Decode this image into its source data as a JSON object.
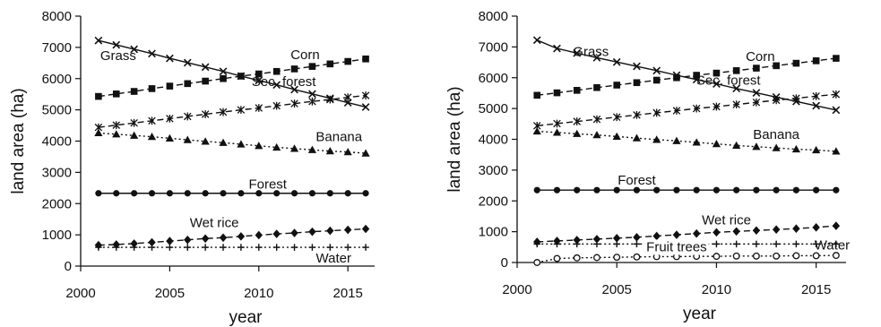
{
  "chart_data": [
    {
      "type": "line",
      "xlabel": "year",
      "ylabel": "land area (ha)",
      "xlim": [
        2000,
        2016.5
      ],
      "ylim": [
        0,
        8000
      ],
      "xticks": [
        2000,
        2005,
        2010,
        2015
      ],
      "yticks": [
        0,
        1000,
        2000,
        3000,
        4000,
        5000,
        6000,
        7000,
        8000
      ],
      "grid": false,
      "legend": "none (series labelled directly on lines)",
      "x": [
        2001,
        2002,
        2003,
        2004,
        2005,
        2006,
        2007,
        2008,
        2009,
        2010,
        2011,
        2012,
        2013,
        2014,
        2015,
        2016
      ],
      "series": [
        {
          "name": "Grass",
          "marker": "cross",
          "dash": "solid",
          "values": [
            7220,
            7080,
            6940,
            6800,
            6650,
            6510,
            6370,
            6230,
            6080,
            5940,
            5800,
            5650,
            5510,
            5370,
            5230,
            5090
          ]
        },
        {
          "name": "Corn",
          "marker": "square",
          "dash": "dashed",
          "values": [
            5430,
            5510,
            5590,
            5680,
            5760,
            5840,
            5920,
            6000,
            6080,
            6150,
            6230,
            6310,
            6390,
            6470,
            6550,
            6630
          ]
        },
        {
          "name": "Sec. forest",
          "marker": "star",
          "dash": "dashed",
          "values": [
            4440,
            4510,
            4580,
            4650,
            4720,
            4790,
            4860,
            4930,
            5000,
            5060,
            5130,
            5200,
            5270,
            5330,
            5400,
            5460
          ]
        },
        {
          "name": "Banana",
          "marker": "triangle",
          "dash": "dotted",
          "values": [
            4260,
            4220,
            4180,
            4140,
            4090,
            4040,
            3990,
            3950,
            3900,
            3850,
            3800,
            3760,
            3720,
            3680,
            3650,
            3610
          ]
        },
        {
          "name": "Forest",
          "marker": "circle",
          "dash": "solid",
          "values": [
            2330,
            2330,
            2330,
            2330,
            2330,
            2330,
            2330,
            2330,
            2330,
            2330,
            2330,
            2330,
            2330,
            2330,
            2330,
            2330
          ]
        },
        {
          "name": "Wet rice",
          "marker": "diamond",
          "dash": "dashed",
          "values": [
            670,
            690,
            720,
            760,
            800,
            840,
            880,
            910,
            950,
            990,
            1030,
            1060,
            1100,
            1130,
            1160,
            1190
          ]
        },
        {
          "name": "Water",
          "marker": "plus",
          "dash": "dotted",
          "values": [
            600,
            600,
            600,
            600,
            600,
            600,
            600,
            600,
            600,
            600,
            600,
            600,
            600,
            600,
            600,
            600
          ]
        }
      ]
    },
    {
      "type": "line",
      "xlabel": "year",
      "ylabel": "land area (ha)",
      "xlim": [
        2000,
        2016.5
      ],
      "ylim": [
        0,
        8000
      ],
      "xticks": [
        2000,
        2005,
        2010,
        2015
      ],
      "yticks": [
        0,
        1000,
        2000,
        3000,
        4000,
        5000,
        6000,
        7000,
        8000
      ],
      "grid": false,
      "legend": "none (series labelled directly on lines)",
      "x": [
        2001,
        2002,
        2003,
        2004,
        2005,
        2006,
        2007,
        2008,
        2009,
        2010,
        2011,
        2012,
        2013,
        2014,
        2015,
        2016
      ],
      "series": [
        {
          "name": "Grass",
          "marker": "cross",
          "dash": "solid",
          "values": [
            7220,
            6950,
            6800,
            6650,
            6510,
            6370,
            6230,
            6080,
            5940,
            5800,
            5650,
            5510,
            5370,
            5230,
            5090,
            4950
          ]
        },
        {
          "name": "Corn",
          "marker": "square",
          "dash": "dashed",
          "values": [
            5430,
            5510,
            5590,
            5680,
            5760,
            5840,
            5920,
            6000,
            6080,
            6150,
            6230,
            6310,
            6390,
            6470,
            6550,
            6630
          ]
        },
        {
          "name": "Sec. forest",
          "marker": "star",
          "dash": "dashed",
          "values": [
            4440,
            4510,
            4580,
            4650,
            4720,
            4790,
            4860,
            4930,
            5000,
            5060,
            5130,
            5200,
            5270,
            5330,
            5400,
            5460
          ]
        },
        {
          "name": "Banana",
          "marker": "triangle",
          "dash": "dotted",
          "values": [
            4260,
            4220,
            4180,
            4140,
            4090,
            4040,
            3990,
            3950,
            3900,
            3850,
            3800,
            3760,
            3720,
            3680,
            3650,
            3610
          ]
        },
        {
          "name": "Forest",
          "marker": "circle",
          "dash": "solid",
          "values": [
            2350,
            2350,
            2350,
            2350,
            2350,
            2350,
            2350,
            2350,
            2350,
            2350,
            2350,
            2350,
            2350,
            2350,
            2350,
            2350
          ]
        },
        {
          "name": "Wet rice",
          "marker": "diamond",
          "dash": "dashed",
          "values": [
            670,
            700,
            730,
            760,
            790,
            820,
            860,
            900,
            940,
            980,
            1010,
            1040,
            1070,
            1100,
            1140,
            1190
          ]
        },
        {
          "name": "Water",
          "marker": "plus",
          "dash": "dotted",
          "values": [
            600,
            600,
            600,
            600,
            600,
            600,
            600,
            600,
            600,
            600,
            600,
            600,
            600,
            600,
            600,
            600
          ]
        },
        {
          "name": "Fruit trees",
          "marker": "open-circle",
          "dash": "dotted",
          "values": [
            0,
            130,
            150,
            160,
            170,
            180,
            190,
            190,
            200,
            200,
            210,
            210,
            210,
            220,
            220,
            230
          ]
        }
      ]
    }
  ]
}
